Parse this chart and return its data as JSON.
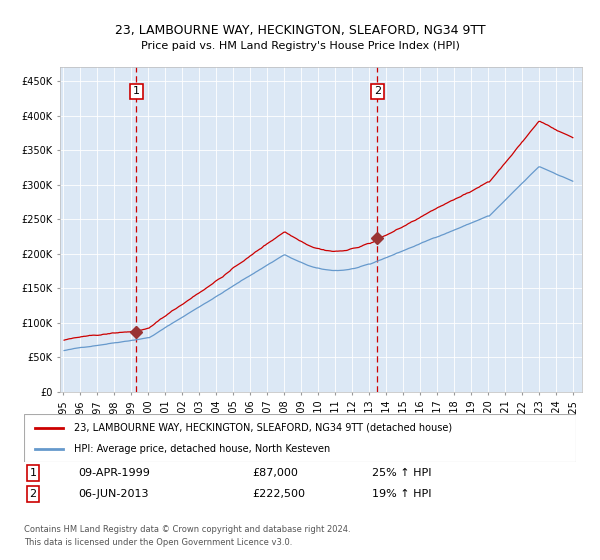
{
  "title": "23, LAMBOURNE WAY, HECKINGTON, SLEAFORD, NG34 9TT",
  "subtitle": "Price paid vs. HM Land Registry's House Price Index (HPI)",
  "legend_line1": "23, LAMBOURNE WAY, HECKINGTON, SLEAFORD, NG34 9TT (detached house)",
  "legend_line2": "HPI: Average price, detached house, North Kesteven",
  "transaction1_date": "09-APR-1999",
  "transaction1_price": 87000,
  "transaction1_pct": "25% ↑ HPI",
  "transaction2_date": "06-JUN-2013",
  "transaction2_price": 222500,
  "transaction2_pct": "19% ↑ HPI",
  "footnote": "Contains HM Land Registry data © Crown copyright and database right 2024.\nThis data is licensed under the Open Government Licence v3.0.",
  "bg_color": "#dce8f5",
  "red_line_color": "#cc0000",
  "blue_line_color": "#6699cc",
  "marker_color": "#993333",
  "dashed_color": "#cc0000",
  "ylim_min": 0,
  "ylim_max": 470000
}
